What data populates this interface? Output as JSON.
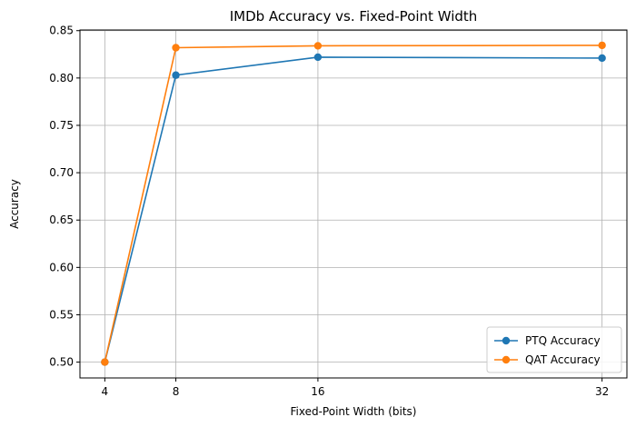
{
  "chart_data": {
    "type": "line",
    "title": "IMDb Accuracy vs. Fixed-Point Width",
    "xlabel": "Fixed-Point Width (bits)",
    "ylabel": "Accuracy",
    "x": [
      4,
      8,
      16,
      32
    ],
    "xticks": [
      "4",
      "8",
      "16",
      "32"
    ],
    "yticks": [
      "0.50",
      "0.55",
      "0.60",
      "0.65",
      "0.70",
      "0.75",
      "0.80",
      "0.85"
    ],
    "xlim": [
      2.6,
      33.4
    ],
    "ylim": [
      0.4833,
      0.8507
    ],
    "grid": true,
    "legend_position": "lower-right",
    "series": [
      {
        "name": "PTQ Accuracy",
        "color": "#1f77b4",
        "values": [
          0.5,
          0.803,
          0.822,
          0.821
        ]
      },
      {
        "name": "QAT Accuracy",
        "color": "#ff7f0e",
        "values": [
          0.5,
          0.832,
          0.834,
          0.8345
        ]
      }
    ]
  }
}
